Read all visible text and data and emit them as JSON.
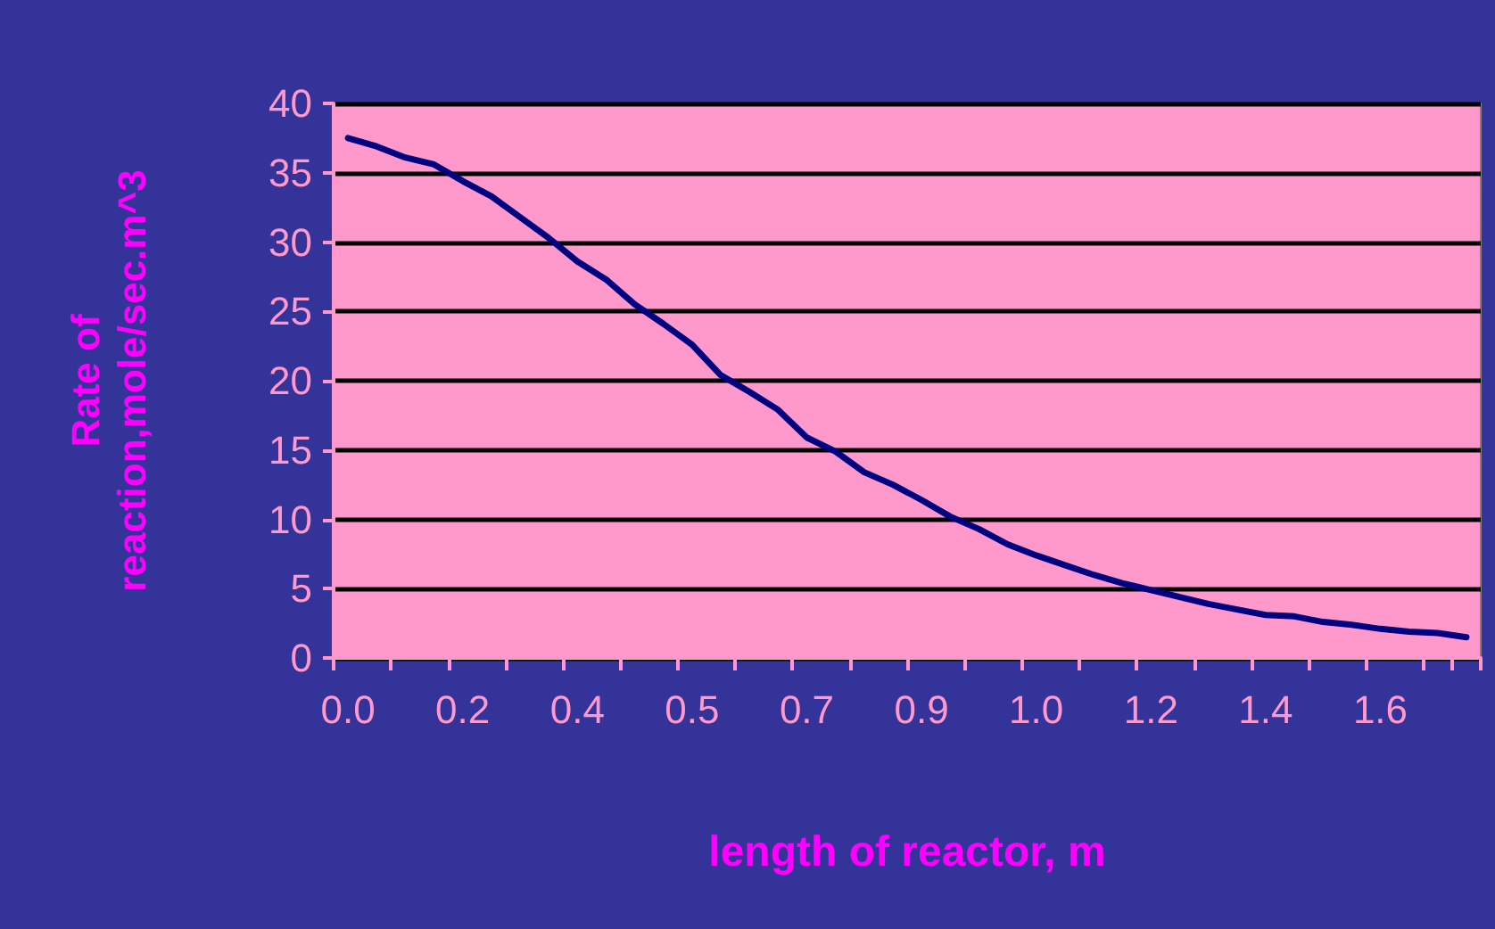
{
  "chart_data": {
    "type": "line",
    "xlabel": "length of reactor, m",
    "ylabel": "Rate of\nreaction,mole/sec.m^3",
    "categories": [
      "0.0",
      null,
      null,
      null,
      "0.2",
      null,
      null,
      null,
      "0.4",
      null,
      null,
      null,
      "0.5",
      null,
      null,
      null,
      "0.7",
      null,
      null,
      null,
      "0.9",
      null,
      null,
      null,
      "1.0",
      null,
      null,
      null,
      "1.2",
      null,
      null,
      null,
      "1.4",
      null,
      null,
      null,
      "1.6",
      null,
      null,
      null
    ],
    "series": [
      {
        "color": "#000080",
        "values": [
          37.5,
          36.9,
          36.1,
          35.6,
          34.4,
          33.3,
          31.8,
          30.3,
          28.6,
          27.3,
          25.5,
          24.1,
          22.6,
          20.4,
          19.2,
          17.9,
          15.9,
          14.9,
          13.4,
          12.5,
          11.4,
          10.2,
          9.3,
          8.2,
          7.4,
          6.7,
          6.0,
          5.4,
          4.9,
          4.4,
          3.9,
          3.5,
          3.1,
          3.0,
          2.6,
          2.4,
          2.1,
          1.9,
          1.8,
          1.5
        ]
      }
    ],
    "ylim": [
      0,
      40
    ],
    "yticks": [
      0,
      5,
      10,
      15,
      20,
      25,
      30,
      35,
      40
    ],
    "grid": "y",
    "marker": "none",
    "line_style": "solid"
  }
}
